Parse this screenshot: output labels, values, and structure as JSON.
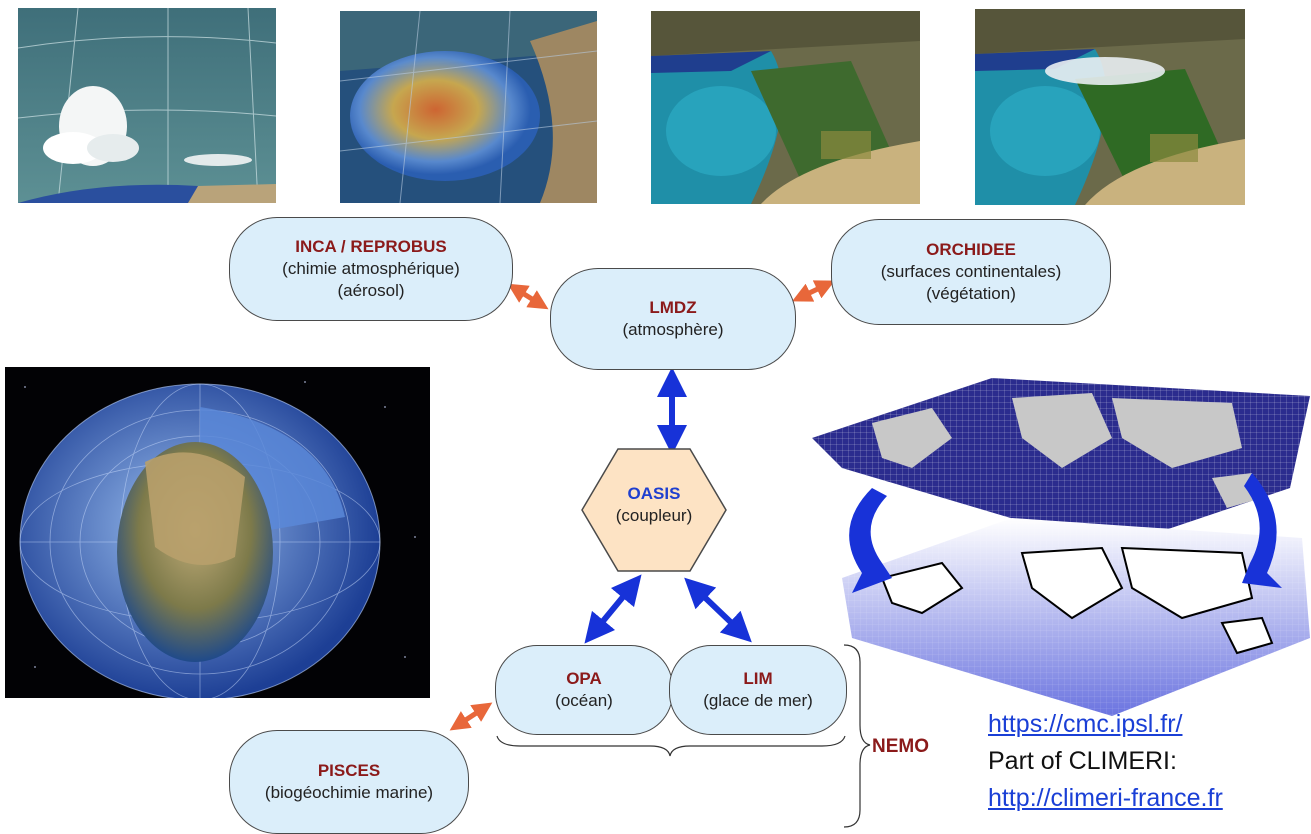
{
  "nodes": {
    "inca": {
      "title": "INCA / REPROBUS",
      "line1": "(chimie atmosphérique)",
      "line2": "(aérosol)"
    },
    "orchidee": {
      "title": "ORCHIDEE",
      "line1": "(surfaces continentales)",
      "line2": "(végétation)"
    },
    "lmdz": {
      "title": "LMDZ",
      "line1": "(atmosphère)"
    },
    "oasis": {
      "title": "OASIS",
      "line1": "(coupleur)"
    },
    "opa": {
      "title": "OPA",
      "line1": "(océan)"
    },
    "lim": {
      "title": "LIM",
      "line1": "(glace de mer)"
    },
    "pisces": {
      "title": "PISCES",
      "line1": "(biogéochimie marine)"
    }
  },
  "nemo_label": "NEMO",
  "links": {
    "cmc_url": "https://cmc.ipsl.fr/",
    "part_of": "Part of CLIMERI:",
    "climeri_url": "http://climeri-france.fr"
  },
  "colors": {
    "node_fill": "#dbeefa",
    "oasis_fill": "#fde3c4",
    "title_red": "#8b1a1a",
    "oasis_title": "#1f3fcf",
    "arrow_blue": "#1732d8",
    "arrow_orange": "#e8673a",
    "link_blue": "#1a3fd6"
  }
}
